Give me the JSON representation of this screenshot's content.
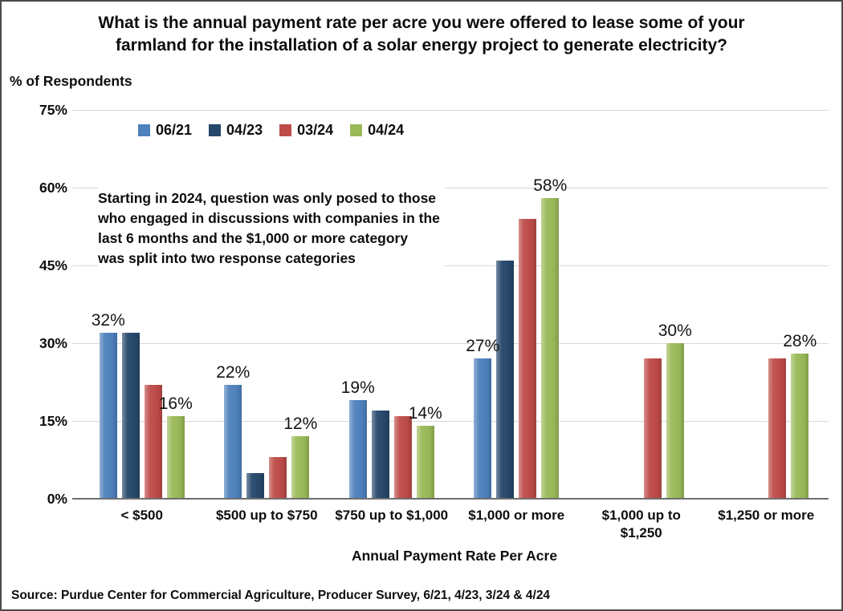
{
  "header": {
    "title_lines": [
      "What is the annual payment rate per acre you were offered to lease some of your",
      "farmland for the installation of a solar energy project to generate electricity?"
    ]
  },
  "y_axis_label": "% of Respondents",
  "x_axis_label": "Annual Payment Rate Per Acre",
  "source": "Source: Purdue Center for Commercial Agriculture, Producer Survey, 6/21, 4/23, 3/24 & 4/24",
  "annotation_lines": [
    "Starting in 2024, question was only posed to those",
    "who engaged in discussions with companies in the",
    "last 6 months and the $1,000 or more category",
    "was split into two response categories"
  ],
  "chart_data": {
    "type": "bar",
    "title": "What is the annual payment rate per acre you were offered to lease some of your farmland for the installation of a solar energy project to generate electricity?",
    "xlabel": "Annual Payment Rate Per Acre",
    "ylabel": "% of Respondents",
    "categories": [
      "< $500",
      "$500 up to $750",
      "$750 up to $1,000",
      "$1,000 or more",
      "$1,000 up to $1,250",
      "$1,250 or more"
    ],
    "category_label_lines": [
      [
        "< $500"
      ],
      [
        "$500 up to $750"
      ],
      [
        "$750 up to $1,000"
      ],
      [
        "$1,000 or more"
      ],
      [
        "$1,000 up to",
        "$1,250"
      ],
      [
        "$1,250 or more"
      ]
    ],
    "series": [
      {
        "name": "06/21",
        "color": "#4E81BD",
        "values": [
          32,
          22,
          19,
          27,
          null,
          null
        ]
      },
      {
        "name": "04/23",
        "color": "#26486B",
        "values": [
          32,
          5,
          17,
          46,
          null,
          null
        ]
      },
      {
        "name": "03/24",
        "color": "#BE4B48",
        "values": [
          22,
          8,
          16,
          54,
          27,
          27
        ]
      },
      {
        "name": "04/24",
        "color": "#9ABA58",
        "values": [
          16,
          12,
          14,
          58,
          30,
          28
        ]
      }
    ],
    "data_labels": [
      {
        "category": 0,
        "series": 0,
        "text": "32%"
      },
      {
        "category": 0,
        "series": 3,
        "text": "16%"
      },
      {
        "category": 1,
        "series": 0,
        "text": "22%"
      },
      {
        "category": 1,
        "series": 3,
        "text": "12%"
      },
      {
        "category": 2,
        "series": 0,
        "text": "19%"
      },
      {
        "category": 2,
        "series": 3,
        "text": "14%"
      },
      {
        "category": 3,
        "series": 0,
        "text": "27%"
      },
      {
        "category": 3,
        "series": 3,
        "text": "58%"
      },
      {
        "category": 4,
        "series": 3,
        "text": "30%"
      },
      {
        "category": 5,
        "series": 3,
        "text": "28%"
      }
    ],
    "y_ticks": [
      "0%",
      "15%",
      "30%",
      "45%",
      "60%",
      "75%"
    ],
    "ylim": [
      0,
      75
    ],
    "grid": true,
    "legend_position": "top-left-inside",
    "colors": {
      "gridline": "#d8d8d8",
      "axis_line": "#6f6f6f"
    }
  }
}
